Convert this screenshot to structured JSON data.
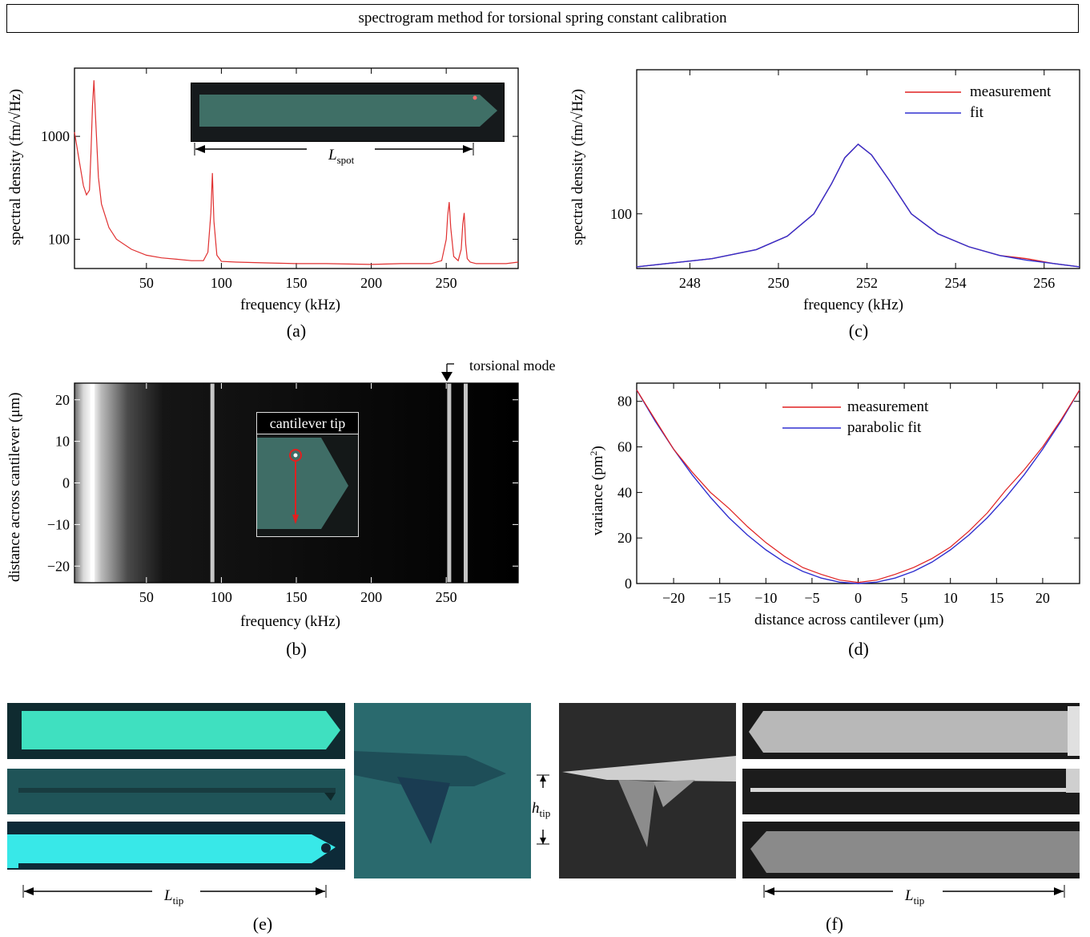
{
  "banner": "spectrogram method for torsional spring constant calibration",
  "panels": {
    "a": {
      "label": "(a)",
      "inset_label": "L",
      "inset_sub": "spot"
    },
    "b": {
      "label": "(b)",
      "annotation": "torsional mode",
      "inset_title": "cantilever tip"
    },
    "c": {
      "label": "(c)"
    },
    "d": {
      "label": "(d)"
    },
    "e": {
      "label": "(e)",
      "dim_label": "L",
      "dim_sub": "tip",
      "h_label": "h",
      "h_sub": "tip"
    },
    "f": {
      "label": "(f)",
      "dim_label": "L",
      "dim_sub": "tip"
    }
  },
  "chart_data": [
    {
      "id": "a",
      "type": "line",
      "xlabel": "frequency (kHz)",
      "ylabel": "spectral density (fm/√Hz)",
      "xlim": [
        2,
        298
      ],
      "ylim": [
        52,
        4600
      ],
      "yscale": "log",
      "xticks": [
        50,
        100,
        150,
        200,
        250
      ],
      "yticks": [
        100,
        1000
      ],
      "series": [
        {
          "color": "#e03030",
          "x": [
            2,
            5,
            8,
            10,
            12,
            13,
            14,
            15,
            16,
            18,
            20,
            25,
            30,
            40,
            50,
            60,
            70,
            80,
            88,
            91,
            93,
            94,
            95,
            97,
            100,
            110,
            130,
            150,
            170,
            200,
            220,
            240,
            247,
            250,
            251,
            252,
            253,
            255,
            258,
            260,
            261,
            262,
            263,
            264,
            266,
            270,
            280,
            290,
            298
          ],
          "y": [
            1100,
            600,
            330,
            270,
            300,
            700,
            2000,
            3500,
            1600,
            400,
            220,
            130,
            100,
            80,
            70,
            66,
            64,
            62,
            62,
            75,
            180,
            440,
            150,
            70,
            61,
            60,
            59,
            58,
            58,
            57,
            58,
            58,
            62,
            100,
            170,
            230,
            130,
            68,
            62,
            80,
            140,
            180,
            90,
            65,
            60,
            58,
            58,
            58,
            60
          ]
        }
      ]
    },
    {
      "id": "b",
      "type": "heatmap",
      "xlabel": "frequency (kHz)",
      "ylabel": "distance across cantilever (μm)",
      "xlim": [
        2,
        298
      ],
      "ylim": [
        -24,
        24
      ],
      "xticks": [
        50,
        100,
        150,
        200,
        250
      ],
      "yticks": [
        20,
        10,
        0,
        -10,
        -20
      ],
      "bright_lines_khz": [
        14,
        94,
        252,
        263
      ]
    },
    {
      "id": "c",
      "type": "line",
      "xlabel": "frequency (kHz)",
      "ylabel": "spectral density (fm/√Hz)",
      "xlim": [
        246.8,
        256.8
      ],
      "yscale": "log",
      "ylim": [
        58,
        420
      ],
      "xticks": [
        248,
        250,
        252,
        254,
        256
      ],
      "yticks": [
        100
      ],
      "legend": "top-right",
      "series": [
        {
          "name": "measurement",
          "color": "#e02020",
          "x": [
            246.8,
            247.5,
            248.5,
            249.5,
            250.2,
            250.8,
            251.2,
            251.5,
            251.8,
            252.1,
            252.5,
            253.0,
            253.6,
            254.3,
            255.0,
            255.6,
            256.2,
            256.8
          ],
          "y": [
            59,
            61,
            64,
            70,
            80,
            100,
            135,
            175,
            200,
            180,
            140,
            100,
            82,
            72,
            66,
            64,
            61,
            59
          ]
        },
        {
          "name": "fit",
          "color": "#3030d0",
          "x": [
            246.8,
            247.5,
            248.5,
            249.5,
            250.2,
            250.8,
            251.2,
            251.5,
            251.8,
            252.1,
            252.5,
            253.0,
            253.6,
            254.3,
            255.0,
            255.6,
            256.2,
            256.8
          ],
          "y": [
            59,
            61,
            64,
            70,
            80,
            100,
            135,
            175,
            200,
            180,
            140,
            100,
            82,
            72,
            66,
            63,
            61,
            59
          ]
        }
      ]
    },
    {
      "id": "d",
      "type": "line",
      "xlabel": "distance across cantilever (μm)",
      "ylabel": "variance (pm²)",
      "xlim": [
        -24,
        24
      ],
      "ylim": [
        0,
        88
      ],
      "xticks": [
        -20,
        -15,
        -10,
        -5,
        0,
        5,
        10,
        15,
        20
      ],
      "yticks": [
        0,
        20,
        40,
        60,
        80
      ],
      "legend": "top-center",
      "series": [
        {
          "name": "measurement",
          "color": "#e02020",
          "x": [
            -24,
            -22,
            -20,
            -18,
            -16,
            -14,
            -12,
            -10,
            -8,
            -6,
            -4,
            -2,
            0,
            2,
            4,
            6,
            8,
            10,
            12,
            14,
            16,
            18,
            20,
            22,
            24
          ],
          "y": [
            85,
            72,
            59,
            49,
            40,
            33,
            25,
            18,
            12,
            7,
            4,
            1.5,
            0.5,
            1.5,
            4,
            7,
            11,
            16,
            23,
            31,
            41,
            50,
            60,
            72,
            85
          ]
        },
        {
          "name": "parabolic fit",
          "color": "#3030d0",
          "x": [
            -24,
            -22,
            -20,
            -18,
            -16,
            -14,
            -12,
            -10,
            -8,
            -6,
            -4,
            -2,
            0,
            2,
            4,
            6,
            8,
            10,
            12,
            14,
            16,
            18,
            20,
            22,
            24
          ],
          "y": [
            85,
            71.4,
            59,
            47.8,
            37.8,
            28.9,
            21.3,
            14.8,
            9.4,
            5.3,
            2.4,
            0.6,
            0,
            0.6,
            2.4,
            5.3,
            9.4,
            14.8,
            21.3,
            28.9,
            37.8,
            47.8,
            59,
            71.4,
            85
          ]
        }
      ]
    }
  ]
}
